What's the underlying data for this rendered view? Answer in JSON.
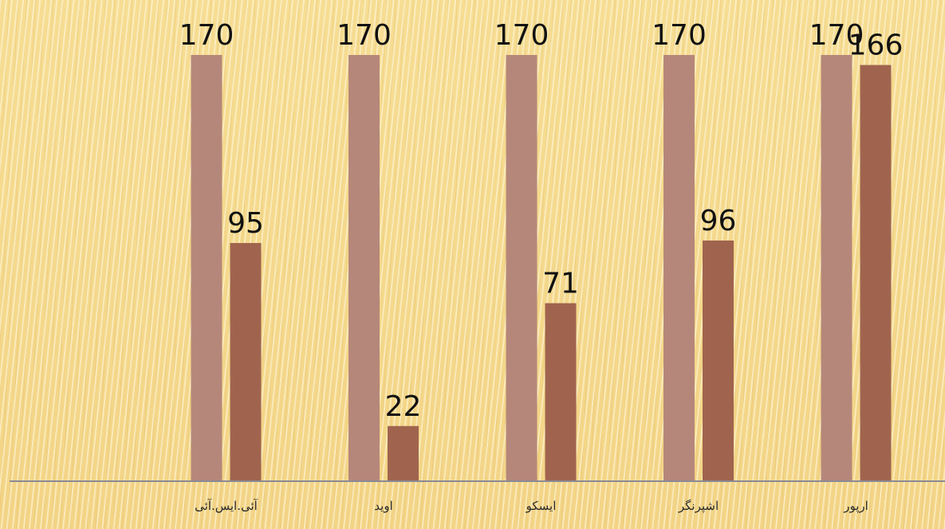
{
  "chart_data": {
    "type": "bar",
    "categories": [
      "آئی.ایس.آئی",
      "اوید",
      "ایسکو",
      "اشپرنگر",
      "ارپور"
    ],
    "series": [
      {
        "values": [
          170,
          170,
          170,
          170,
          170
        ],
        "color": "#b5877a"
      },
      {
        "values": [
          95,
          22,
          71,
          96,
          166
        ],
        "color": "#a0644e"
      }
    ],
    "ylim": [
      0,
      170
    ],
    "grid": false,
    "legend": "none",
    "data_labels": true
  },
  "colors": {
    "axis": "#8a8a95",
    "background": "#f5d98a"
  }
}
